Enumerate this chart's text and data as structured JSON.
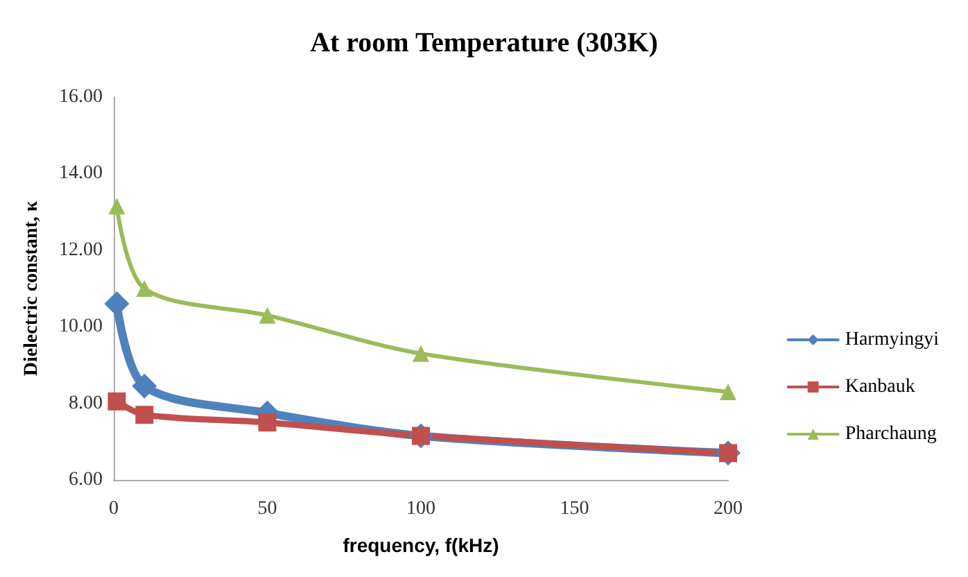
{
  "chart_data": {
    "type": "line",
    "title": "At room Temperature (303K)",
    "xlabel": "frequency, f(kHz)",
    "ylabel": "Dielectric constant, κ",
    "x": [
      1,
      10,
      50,
      100,
      200
    ],
    "series": [
      {
        "name": "Harmyingyi",
        "color": "#4f81bd",
        "marker": "diamond",
        "values": [
          10.6,
          8.45,
          7.75,
          7.15,
          6.7
        ]
      },
      {
        "name": "Kanbauk",
        "color": "#c0504d",
        "marker": "square",
        "values": [
          8.05,
          7.7,
          7.5,
          7.15,
          6.7
        ]
      },
      {
        "name": "Pharchaung",
        "color": "#9bbb59",
        "marker": "triangle",
        "values": [
          13.15,
          11.0,
          10.3,
          9.3,
          8.3
        ]
      }
    ],
    "xlim": [
      0,
      200
    ],
    "xticks": [
      0,
      50,
      100,
      150,
      200
    ],
    "ylim": [
      6,
      16
    ],
    "yticks": [
      {
        "value": 6,
        "label": "6.00"
      },
      {
        "value": 8,
        "label": "8.00"
      },
      {
        "value": 10,
        "label": "10.00"
      },
      {
        "value": 12,
        "label": "12.00"
      },
      {
        "value": 14,
        "label": "14.00"
      },
      {
        "value": 16,
        "label": "16.00"
      }
    ],
    "grid": false,
    "legend": "right",
    "line_style": "solid"
  }
}
